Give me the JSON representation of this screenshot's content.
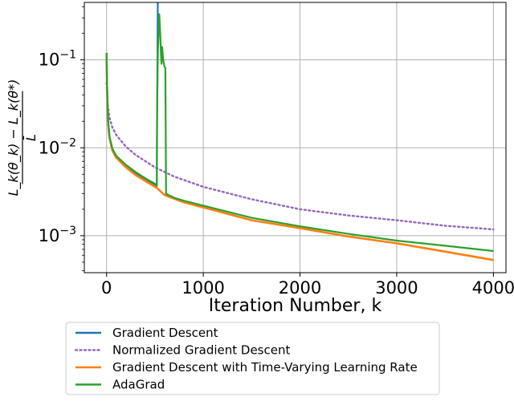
{
  "chart_data": {
    "type": "line",
    "xlabel": "Iteration Number, k",
    "ylabel_parts": {
      "line1": "L_k(θ_k) − L_k(θ*)",
      "line2": "L̄"
    },
    "xlim": [
      -230,
      4130
    ],
    "ylim": [
      0.00038,
      0.45
    ],
    "yscale": "log",
    "grid": true,
    "legend_placement": "below-plot",
    "x_ticks": [
      0,
      1000,
      2000,
      3000,
      4000
    ],
    "x_tick_labels": [
      "0",
      "1000",
      "2000",
      "3000",
      "4000"
    ],
    "y_ticks": [
      0.001,
      0.01,
      0.1
    ],
    "y_tick_labels": [
      {
        "base": "10",
        "exp": "−3"
      },
      {
        "base": "10",
        "exp": "−2"
      },
      {
        "base": "10",
        "exp": "−1"
      }
    ],
    "series": [
      {
        "name": "Gradient Descent",
        "color": "#1f77b4",
        "dash": "solid",
        "x": [
          0,
          4,
          15,
          30,
          60,
          100,
          200,
          300,
          400,
          500,
          520,
          522,
          530,
          545
        ],
        "y": [
          0.12,
          0.055,
          0.02,
          0.013,
          0.0095,
          0.0079,
          0.0062,
          0.0051,
          0.0044,
          0.0038,
          0.0037,
          0.02,
          0.5,
          0.9
        ]
      },
      {
        "name": "Normalized Gradient Descent",
        "color": "#9467bd",
        "dash": "dotted",
        "x": [
          0,
          10,
          30,
          60,
          100,
          200,
          300,
          500,
          700,
          1000,
          1500,
          2000,
          2500,
          3000,
          3500,
          4000
        ],
        "y": [
          0.055,
          0.032,
          0.022,
          0.017,
          0.014,
          0.0103,
          0.0083,
          0.006,
          0.0047,
          0.0036,
          0.0026,
          0.002,
          0.0017,
          0.0015,
          0.0013,
          0.00118
        ]
      },
      {
        "name": "Gradient Descent with Time-Varying Learning Rate",
        "color": "#ff7f0e",
        "dash": "solid",
        "x": [
          0,
          4,
          15,
          30,
          60,
          100,
          200,
          300,
          400,
          500,
          520,
          600,
          800,
          1000,
          1500,
          2000,
          2500,
          3000,
          3500,
          4000
        ],
        "y": [
          0.12,
          0.055,
          0.02,
          0.013,
          0.0093,
          0.0077,
          0.006,
          0.0049,
          0.0042,
          0.0036,
          0.0035,
          0.0029,
          0.0024,
          0.0021,
          0.0015,
          0.00122,
          0.00098,
          0.00082,
          0.00066,
          0.00053
        ]
      },
      {
        "name": "AdaGrad",
        "color": "#2ca02c",
        "dash": "solid",
        "x": [
          0,
          4,
          15,
          30,
          60,
          100,
          200,
          300,
          400,
          500,
          520,
          522,
          530,
          545,
          555,
          562,
          568,
          575,
          585,
          598,
          608,
          612,
          615,
          700,
          800,
          1000,
          1500,
          2000,
          2500,
          3000,
          3500,
          4000
        ],
        "y": [
          0.12,
          0.055,
          0.021,
          0.0135,
          0.0098,
          0.0081,
          0.0064,
          0.0053,
          0.0045,
          0.0039,
          0.0037,
          0.02,
          0.12,
          0.33,
          0.2,
          0.12,
          0.09,
          0.14,
          0.1,
          0.085,
          0.08,
          0.012,
          0.003,
          0.0027,
          0.0025,
          0.0022,
          0.0016,
          0.00128,
          0.00105,
          0.00088,
          0.00077,
          0.00067
        ]
      }
    ]
  }
}
